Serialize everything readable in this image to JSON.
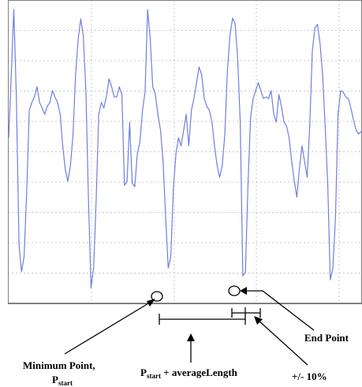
{
  "chart_data": {
    "type": "line",
    "title": "",
    "xlabel": "",
    "ylabel": "",
    "grid": true,
    "series": [
      {
        "color": "#6f7fe0",
        "values": [
          210,
          290,
          373,
          260,
          75,
          40,
          60,
          140,
          245,
          255,
          262,
          275,
          255,
          248,
          240,
          250,
          255,
          270,
          262,
          255,
          240,
          200,
          170,
          155,
          175,
          215,
          290,
          335,
          361,
          340,
          270,
          135,
          20,
          45,
          130,
          240,
          255,
          248,
          263,
          285,
          275,
          262,
          262,
          275,
          265,
          150,
          155,
          230,
          153,
          148,
          190,
          205,
          245,
          268,
          373,
          335,
          275,
          265,
          240,
          220,
          180,
          110,
          45,
          60,
          145,
          190,
          210,
          200,
          220,
          240,
          200,
          245,
          260,
          280,
          300,
          290,
          260,
          250,
          245,
          230,
          200,
          175,
          160,
          175,
          215,
          295,
          340,
          362,
          355,
          310,
          230,
          35,
          40,
          150,
          235,
          260,
          270,
          280,
          270,
          260,
          262,
          260,
          270,
          240,
          230,
          265,
          250,
          230,
          225,
          210,
          180,
          155,
          135,
          172,
          200,
          180,
          160,
          225,
          320,
          350,
          354,
          330,
          290,
          225,
          150,
          30,
          45,
          110,
          240,
          270,
          268,
          262,
          260,
          248,
          233,
          220,
          215,
          218
        ]
      }
    ],
    "annotations": {
      "min_point_label": "Minimum Point,",
      "p_start_label": "P",
      "p_start_sub": "start",
      "avg_label_p": "P",
      "avg_label_sub": "start",
      "avg_label_rest": " + averageLength",
      "end_point_label": "End Point",
      "tolerance_label": "+/- 10%"
    }
  }
}
